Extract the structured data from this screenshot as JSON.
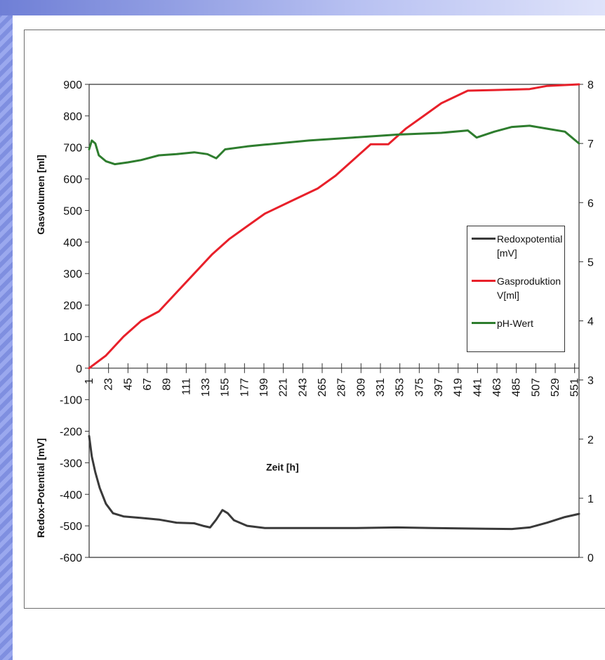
{
  "chart_data": {
    "type": "line",
    "xlabel": "Zeit [h]",
    "x_ticks": [
      1,
      23,
      45,
      67,
      89,
      111,
      133,
      155,
      177,
      199,
      221,
      243,
      265,
      287,
      309,
      331,
      353,
      375,
      397,
      419,
      441,
      463,
      485,
      507,
      529,
      551
    ],
    "y_left_label": "Gasvolumen [ml]",
    "y_left_lower_label": "Redox-Potential [mV]",
    "y_left_ticks": [
      900,
      800,
      700,
      600,
      500,
      400,
      300,
      200,
      100,
      0,
      -100,
      -200,
      -300,
      -400,
      -500,
      -600
    ],
    "y_left_range": [
      -600,
      900
    ],
    "y_right_label": "pH-Wert",
    "y_right_ticks": [
      8,
      7,
      6,
      5,
      4,
      3,
      2,
      1,
      0
    ],
    "y_right_range": [
      0,
      8
    ],
    "legend_position": "right-middle",
    "series": [
      {
        "name": "Redoxpotential [mV]",
        "axis": "left",
        "color": "#3a3a3a",
        "points": [
          [
            1,
            -215
          ],
          [
            4,
            -280
          ],
          [
            8,
            -330
          ],
          [
            13,
            -380
          ],
          [
            20,
            -430
          ],
          [
            28,
            -460
          ],
          [
            40,
            -470
          ],
          [
            60,
            -475
          ],
          [
            80,
            -480
          ],
          [
            100,
            -490
          ],
          [
            120,
            -492
          ],
          [
            130,
            -500
          ],
          [
            138,
            -505
          ],
          [
            145,
            -480
          ],
          [
            152,
            -450
          ],
          [
            158,
            -460
          ],
          [
            165,
            -482
          ],
          [
            180,
            -500
          ],
          [
            200,
            -507
          ],
          [
            240,
            -507
          ],
          [
            300,
            -507
          ],
          [
            350,
            -505
          ],
          [
            390,
            -507
          ],
          [
            450,
            -509
          ],
          [
            480,
            -510
          ],
          [
            500,
            -505
          ],
          [
            520,
            -490
          ],
          [
            540,
            -472
          ],
          [
            556,
            -462
          ]
        ]
      },
      {
        "name": "Gasproduktion V[ml]",
        "axis": "left",
        "color": "#e8202a",
        "points": [
          [
            1,
            0
          ],
          [
            20,
            40
          ],
          [
            40,
            100
          ],
          [
            60,
            150
          ],
          [
            80,
            180
          ],
          [
            100,
            240
          ],
          [
            120,
            300
          ],
          [
            140,
            360
          ],
          [
            160,
            410
          ],
          [
            180,
            450
          ],
          [
            200,
            490
          ],
          [
            230,
            530
          ],
          [
            260,
            570
          ],
          [
            280,
            610
          ],
          [
            300,
            660
          ],
          [
            320,
            710
          ],
          [
            340,
            710
          ],
          [
            360,
            760
          ],
          [
            380,
            800
          ],
          [
            400,
            840
          ],
          [
            430,
            880
          ],
          [
            460,
            882
          ],
          [
            500,
            885
          ],
          [
            520,
            895
          ],
          [
            556,
            900
          ]
        ]
      },
      {
        "name": "pH-Wert",
        "axis": "right",
        "color": "#2e7d2e",
        "points": [
          [
            1,
            6.9
          ],
          [
            4,
            7.05
          ],
          [
            8,
            7.0
          ],
          [
            12,
            6.8
          ],
          [
            20,
            6.7
          ],
          [
            30,
            6.65
          ],
          [
            45,
            6.68
          ],
          [
            60,
            6.72
          ],
          [
            80,
            6.8
          ],
          [
            100,
            6.82
          ],
          [
            120,
            6.85
          ],
          [
            135,
            6.82
          ],
          [
            145,
            6.75
          ],
          [
            155,
            6.9
          ],
          [
            180,
            6.95
          ],
          [
            200,
            6.98
          ],
          [
            250,
            7.05
          ],
          [
            300,
            7.1
          ],
          [
            350,
            7.15
          ],
          [
            400,
            7.18
          ],
          [
            430,
            7.22
          ],
          [
            440,
            7.1
          ],
          [
            460,
            7.2
          ],
          [
            480,
            7.28
          ],
          [
            500,
            7.3
          ],
          [
            520,
            7.25
          ],
          [
            540,
            7.2
          ],
          [
            556,
            7.0
          ]
        ]
      }
    ]
  }
}
